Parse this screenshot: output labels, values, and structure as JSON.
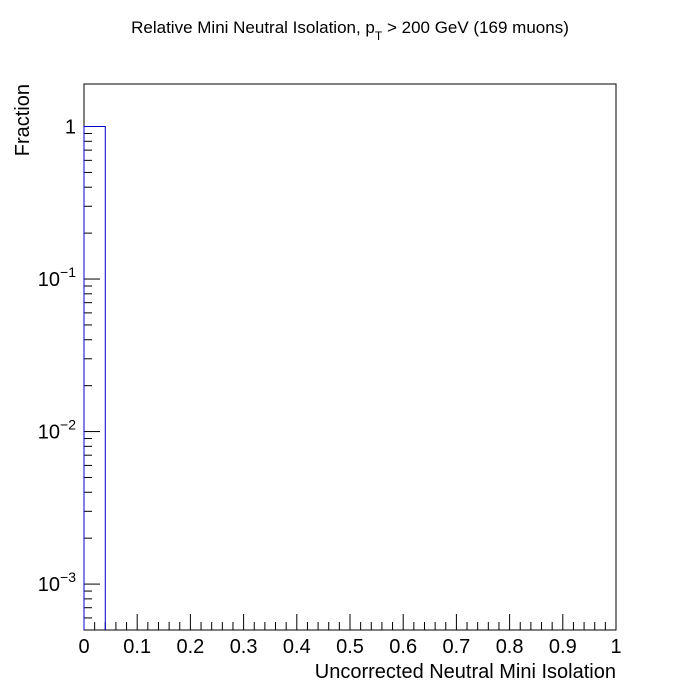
{
  "chart_data": {
    "type": "bar",
    "title": {
      "main": "Relative Mini Neutral Isolation, p",
      "subscript": "T",
      "rest": " > 200 GeV (169 muons)"
    },
    "xlabel": "Uncorrected Neutral Mini Isolation",
    "ylabel": "Fraction",
    "xlim": [
      0,
      1
    ],
    "ylim": [
      0.0005,
      1.9
    ],
    "yscale": "log",
    "x_ticks": [
      "0",
      "0.1",
      "0.2",
      "0.3",
      "0.4",
      "0.5",
      "0.6",
      "0.7",
      "0.8",
      "0.9",
      "1"
    ],
    "y_ticks": [
      {
        "value": 1,
        "base": "1",
        "exp": ""
      },
      {
        "value": 0.1,
        "base": "10",
        "exp": "−1"
      },
      {
        "value": 0.01,
        "base": "10",
        "exp": "−2"
      },
      {
        "value": 0.001,
        "base": "10",
        "exp": "−3"
      }
    ],
    "bins": [
      {
        "low": 0.0,
        "high": 0.04,
        "value": 1.0
      }
    ],
    "line_color": "#0000cc",
    "grid": false,
    "legend": "none"
  }
}
